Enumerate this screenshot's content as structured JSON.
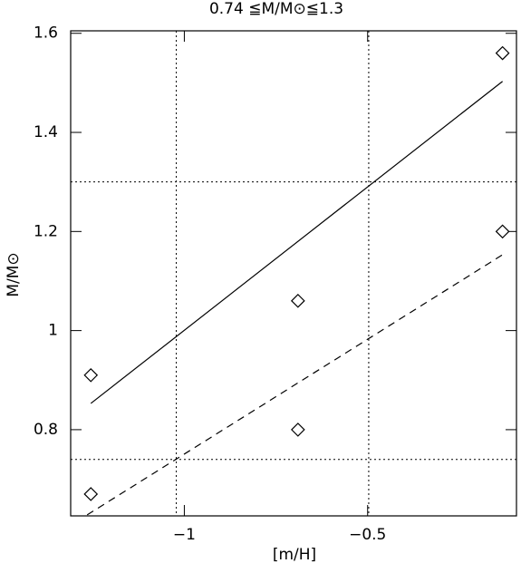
{
  "chart_data": {
    "type": "scatter",
    "title": "0.74 ≦M/M⊙≦1.3",
    "x_label": "[m/H]",
    "y_label": "M/M⊙",
    "xlim": [
      -1.31,
      -0.094
    ],
    "ylim": [
      0.626,
      1.605
    ],
    "xticks": [
      {
        "value": -1,
        "label": "−1"
      },
      {
        "value": -0.5,
        "label": "−0.5"
      }
    ],
    "yticks": [
      0.8,
      1,
      1.2,
      1.4,
      1.6
    ],
    "points": {
      "x": [
        -1.255,
        -1.255,
        -0.69,
        -0.69,
        -0.132,
        -0.132
      ],
      "y": [
        0.91,
        0.67,
        1.06,
        0.8,
        1.56,
        1.2
      ]
    },
    "lines": [
      {
        "style": "solid",
        "x": [
          -1.255,
          -0.132
        ],
        "y": [
          0.853,
          1.503
        ]
      },
      {
        "style": "dashed",
        "x": [
          -1.265,
          -0.132
        ],
        "y": [
          0.628,
          1.153
        ]
      }
    ],
    "reference_lines": {
      "style": "dotted",
      "x": [
        -1.022,
        -0.497
      ],
      "y": [
        1.3,
        0.74
      ]
    }
  }
}
